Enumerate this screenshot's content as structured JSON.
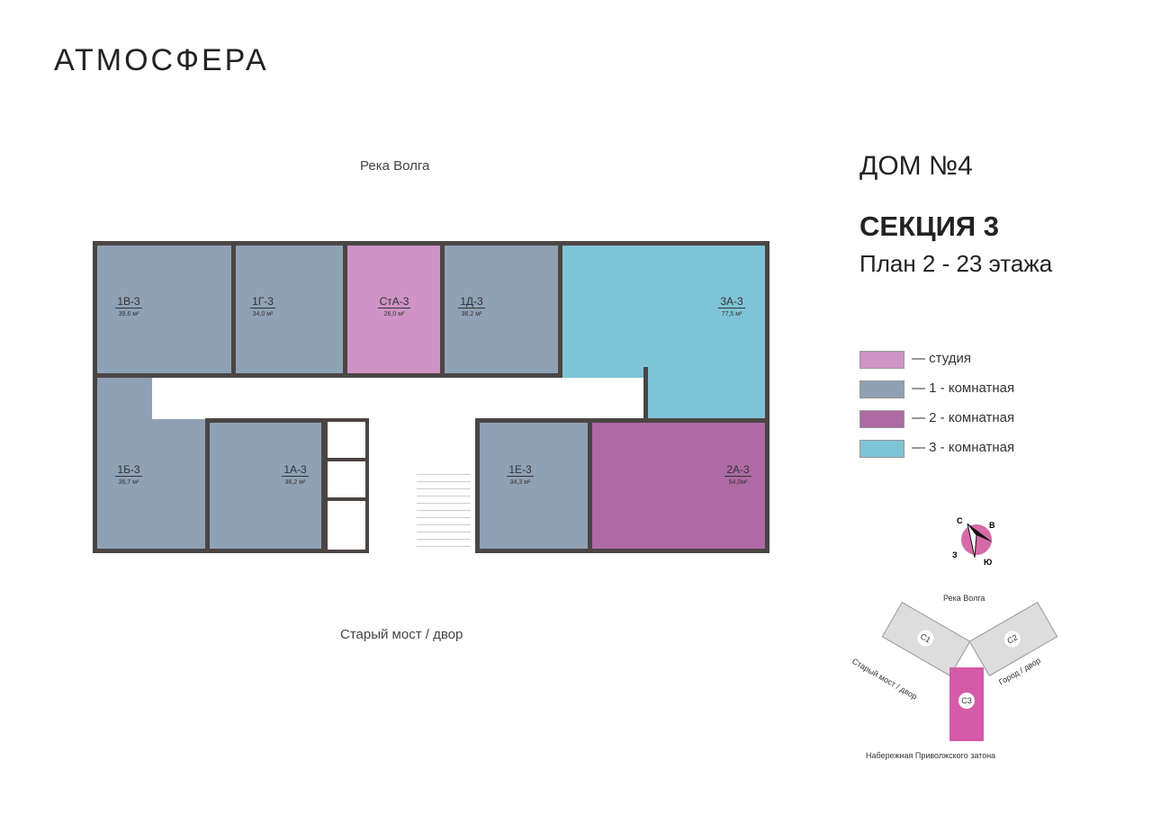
{
  "logo": "АТМОСФЕРА",
  "labels": {
    "top": "Река Волга",
    "bottom": "Старый мост / двор"
  },
  "title": {
    "house": "ДОМ №4",
    "section": "СЕКЦИЯ 3",
    "plan": "План 2 - 23 этажа"
  },
  "colors": {
    "studio": "#cf93c5",
    "one": "#8fa1b5",
    "two": "#ad6aa4",
    "three": "#7fc4d6",
    "wall": "#4b4544",
    "c3": "#d55aa8"
  },
  "legend": [
    {
      "label": "— студия",
      "color": "#cf93c5"
    },
    {
      "label": "— 1 - комнатная",
      "color": "#8fa1b5"
    },
    {
      "label": "— 2 - комнатная",
      "color": "#ad6aa4"
    },
    {
      "label": "— 3 - комнатная",
      "color": "#7fc4d6"
    }
  ],
  "apartments": [
    {
      "name": "1В-3",
      "area": "39,6 м²",
      "type": "one"
    },
    {
      "name": "1Г-3",
      "area": "34,0 м²",
      "type": "one"
    },
    {
      "name": "СтА-3",
      "area": "26,0 м²",
      "type": "studio"
    },
    {
      "name": "1Д-3",
      "area": "36,2 м²",
      "type": "one"
    },
    {
      "name": "3А-3",
      "area": "77,5 м²",
      "type": "three"
    },
    {
      "name": "1Б-3",
      "area": "36,7 м²",
      "type": "one"
    },
    {
      "name": "1А-3",
      "area": "36,2 м²",
      "type": "one"
    },
    {
      "name": "1Е-3",
      "area": "34,3 м²",
      "type": "one"
    },
    {
      "name": "2А-3",
      "area": "54,0м²",
      "type": "two"
    }
  ],
  "compass": {
    "n": "С",
    "e": "В",
    "s": "Ю",
    "w": "З"
  },
  "site": {
    "top": "Река Волга",
    "left": "Старый мост / двор",
    "right": "Город / двор",
    "bottom": "Набережная Приволжского затона",
    "blocks": [
      "С1",
      "С2",
      "С3"
    ]
  }
}
